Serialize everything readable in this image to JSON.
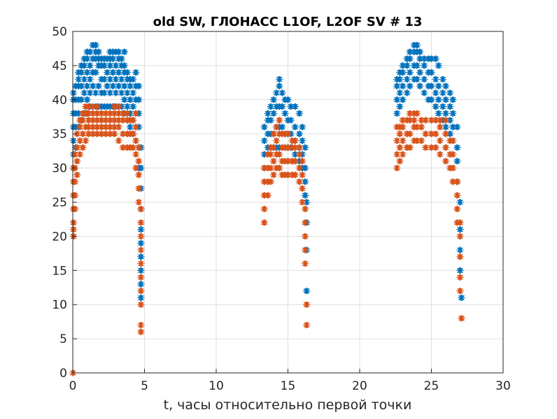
{
  "chart_data": {
    "type": "scatter",
    "title": "old SW, ГЛОНАСС L1OF, L2OF SV # 13",
    "xlabel": "t, часы относительно первой точки",
    "ylabel": "",
    "xlim": [
      0,
      30
    ],
    "ylim": [
      0,
      50
    ],
    "xticks": [
      0,
      5,
      10,
      15,
      20,
      25,
      30
    ],
    "yticks": [
      0,
      5,
      10,
      15,
      20,
      25,
      30,
      35,
      40,
      45,
      50
    ],
    "grid": true,
    "marker": "asterisk",
    "series": [
      {
        "color": "#0072BD",
        "points": [
          [
            0.05,
            [
              30,
              32,
              34,
              36,
              38,
              40,
              41
            ]
          ],
          [
            0.2,
            [
              33,
              36,
              38,
              40,
              42
            ]
          ],
          [
            0.4,
            [
              36,
              38,
              40,
              42,
              43,
              44
            ]
          ],
          [
            0.6,
            [
              37,
              40,
              42,
              44,
              45
            ]
          ],
          [
            0.8,
            [
              38,
              41,
              43,
              45,
              46
            ]
          ],
          [
            1.0,
            [
              38,
              40,
              42,
              44,
              46,
              47
            ]
          ],
          [
            1.2,
            [
              39,
              41,
              43,
              45,
              47
            ]
          ],
          [
            1.4,
            [
              39,
              42,
              44,
              46,
              48
            ]
          ],
          [
            1.6,
            [
              39,
              41,
              44,
              46,
              47,
              48
            ]
          ],
          [
            1.8,
            [
              39,
              42,
              45,
              46,
              47
            ]
          ],
          [
            2.0,
            [
              39,
              41,
              43,
              45,
              46
            ]
          ],
          [
            2.2,
            [
              39,
              41,
              43,
              45,
              46
            ]
          ],
          [
            2.4,
            [
              39,
              42,
              44,
              46
            ]
          ],
          [
            2.6,
            [
              39,
              41,
              43,
              45,
              46,
              47
            ]
          ],
          [
            2.8,
            [
              39,
              42,
              44,
              46,
              47
            ]
          ],
          [
            3.0,
            [
              39,
              41,
              43,
              45,
              47
            ]
          ],
          [
            3.2,
            [
              39,
              42,
              44,
              46,
              47
            ]
          ],
          [
            3.4,
            [
              39,
              41,
              43,
              45,
              46
            ]
          ],
          [
            3.6,
            [
              38,
              40,
              42,
              44,
              45,
              47
            ]
          ],
          [
            3.8,
            [
              37,
              39,
              41,
              43,
              44
            ]
          ],
          [
            4.0,
            [
              36,
              38,
              40,
              42,
              43
            ]
          ],
          [
            4.2,
            [
              35,
              37,
              39,
              41,
              43
            ]
          ],
          [
            4.4,
            [
              34,
              36,
              38,
              40,
              42,
              44
            ]
          ],
          [
            4.6,
            [
              30,
              33,
              36,
              38,
              40,
              42
            ]
          ],
          [
            4.75,
            [
              11,
              13,
              15,
              17,
              19,
              21,
              24,
              27,
              30,
              33
            ]
          ],
          [
            13.35,
            [
              30,
              32,
              34,
              36
            ]
          ],
          [
            13.6,
            [
              33,
              35,
              37,
              38
            ]
          ],
          [
            13.8,
            [
              33,
              35,
              37,
              39
            ]
          ],
          [
            14.0,
            [
              33,
              35,
              38,
              40
            ]
          ],
          [
            14.2,
            [
              33,
              36,
              39,
              41
            ]
          ],
          [
            14.4,
            [
              33,
              36,
              39,
              42,
              43
            ]
          ],
          [
            14.6,
            [
              33,
              36,
              39,
              41
            ]
          ],
          [
            14.8,
            [
              33,
              35,
              38,
              40
            ]
          ],
          [
            15.0,
            [
              33,
              35,
              37,
              40
            ]
          ],
          [
            15.2,
            [
              33,
              35,
              37,
              39
            ]
          ],
          [
            15.5,
            [
              32,
              34,
              36,
              39
            ]
          ],
          [
            15.8,
            [
              31,
              33,
              35,
              38
            ]
          ],
          [
            16.0,
            [
              30,
              32,
              34,
              36
            ]
          ],
          [
            16.2,
            [
              26,
              28,
              30,
              33
            ]
          ],
          [
            16.3,
            [
              12,
              18,
              22,
              25
            ]
          ],
          [
            22.6,
            [
              38,
              40,
              42,
              43
            ]
          ],
          [
            22.8,
            [
              39,
              41,
              43,
              44
            ]
          ],
          [
            23.0,
            [
              40,
              42,
              44,
              45
            ]
          ],
          [
            23.3,
            [
              41,
              43,
              45,
              46
            ]
          ],
          [
            23.5,
            [
              42,
              44,
              46,
              47
            ]
          ],
          [
            23.8,
            [
              43,
              45,
              47,
              48
            ]
          ],
          [
            24.0,
            [
              43,
              45,
              47,
              48
            ]
          ],
          [
            24.2,
            [
              42,
              44,
              46,
              47
            ]
          ],
          [
            24.5,
            [
              41,
              43,
              45,
              46
            ]
          ],
          [
            24.8,
            [
              40,
              42,
              44,
              46
            ]
          ],
          [
            25.0,
            [
              40,
              42,
              44,
              46
            ]
          ],
          [
            25.3,
            [
              39,
              41,
              43,
              46
            ]
          ],
          [
            25.5,
            [
              38,
              40,
              42,
              45
            ]
          ],
          [
            25.8,
            [
              37,
              39,
              41,
              43
            ]
          ],
          [
            26.0,
            [
              36,
              38,
              40,
              42
            ]
          ],
          [
            26.3,
            [
              35,
              37,
              39,
              41
            ]
          ],
          [
            26.5,
            [
              34,
              36,
              38,
              40
            ]
          ],
          [
            26.8,
            [
              28,
              31,
              33,
              36
            ]
          ],
          [
            27.0,
            [
              15,
              18,
              21,
              25
            ]
          ],
          [
            27.1,
            [
              11
            ]
          ]
        ]
      },
      {
        "color": "#D95319",
        "points": [
          [
            0.02,
            [
              0
            ]
          ],
          [
            0.05,
            [
              20,
              21,
              22,
              24,
              26,
              28,
              30
            ]
          ],
          [
            0.15,
            [
              24,
              26,
              28,
              30,
              32
            ]
          ],
          [
            0.3,
            [
              29,
              31,
              33,
              35
            ]
          ],
          [
            0.5,
            [
              32,
              34,
              36,
              37
            ]
          ],
          [
            0.7,
            [
              33,
              35,
              37,
              38
            ]
          ],
          [
            0.9,
            [
              34,
              36,
              38,
              39
            ]
          ],
          [
            1.1,
            [
              35,
              36,
              37,
              38,
              39
            ]
          ],
          [
            1.4,
            [
              35,
              36,
              37,
              38,
              39
            ]
          ],
          [
            1.7,
            [
              35,
              36,
              37,
              38,
              39
            ]
          ],
          [
            2.0,
            [
              35,
              36,
              37,
              38
            ]
          ],
          [
            2.3,
            [
              35,
              36,
              37,
              38
            ]
          ],
          [
            2.6,
            [
              35,
              36,
              37,
              38
            ]
          ],
          [
            2.9,
            [
              35,
              36,
              37,
              38,
              39
            ]
          ],
          [
            3.2,
            [
              34,
              36,
              37,
              38,
              39
            ]
          ],
          [
            3.5,
            [
              33,
              35,
              37,
              38
            ]
          ],
          [
            3.8,
            [
              33,
              35,
              37,
              38
            ]
          ],
          [
            4.0,
            [
              33,
              35,
              37
            ]
          ],
          [
            4.2,
            [
              33,
              35,
              37
            ]
          ],
          [
            4.4,
            [
              30,
              32,
              34,
              36,
              38
            ]
          ],
          [
            4.6,
            [
              25,
              27,
              29,
              31,
              33
            ]
          ],
          [
            4.75,
            [
              6,
              7,
              10,
              12,
              14,
              16,
              18,
              20,
              22,
              24
            ]
          ],
          [
            13.35,
            [
              22,
              24,
              26,
              28,
              30
            ]
          ],
          [
            13.6,
            [
              26,
              28,
              30,
              32
            ]
          ],
          [
            13.8,
            [
              28,
              30,
              32,
              33
            ]
          ],
          [
            14.0,
            [
              29,
              31,
              33,
              35
            ]
          ],
          [
            14.2,
            [
              30,
              32,
              34,
              36
            ]
          ],
          [
            14.4,
            [
              30,
              32,
              35,
              37
            ]
          ],
          [
            14.6,
            [
              29,
              31,
              33,
              35
            ]
          ],
          [
            14.8,
            [
              29,
              31,
              33,
              35
            ]
          ],
          [
            15.0,
            [
              29,
              31,
              33,
              35
            ]
          ],
          [
            15.3,
            [
              29,
              31,
              33,
              34
            ]
          ],
          [
            15.5,
            [
              29,
              31,
              33,
              34
            ]
          ],
          [
            15.8,
            [
              28,
              30,
              32,
              33
            ]
          ],
          [
            16.0,
            [
              25,
              27,
              29,
              31
            ]
          ],
          [
            16.2,
            [
              16,
              18,
              20,
              22,
              24
            ]
          ],
          [
            16.3,
            [
              7,
              10
            ]
          ],
          [
            22.6,
            [
              30,
              32,
              34,
              36
            ]
          ],
          [
            22.8,
            [
              31,
              33,
              35,
              36
            ]
          ],
          [
            23.0,
            [
              32,
              34,
              36,
              37
            ]
          ],
          [
            23.3,
            [
              33,
              35,
              37
            ]
          ],
          [
            23.5,
            [
              33,
              35,
              37,
              38
            ]
          ],
          [
            23.8,
            [
              34,
              36,
              37,
              38
            ]
          ],
          [
            24.0,
            [
              34,
              36,
              38
            ]
          ],
          [
            24.3,
            [
              34,
              36,
              37
            ]
          ],
          [
            24.6,
            [
              33,
              35,
              37
            ]
          ],
          [
            25.0,
            [
              33,
              35,
              37
            ]
          ],
          [
            25.3,
            [
              33,
              35,
              37
            ]
          ],
          [
            25.6,
            [
              32,
              34,
              36,
              37
            ]
          ],
          [
            26.0,
            [
              31,
              33,
              35,
              37
            ]
          ],
          [
            26.3,
            [
              30,
              32,
              34
            ]
          ],
          [
            26.5,
            [
              28,
              30,
              32,
              34
            ]
          ],
          [
            26.8,
            [
              22,
              24,
              26,
              28
            ]
          ],
          [
            27.0,
            [
              12,
              14,
              17,
              20,
              22
            ]
          ],
          [
            27.1,
            [
              8
            ]
          ]
        ]
      }
    ]
  }
}
